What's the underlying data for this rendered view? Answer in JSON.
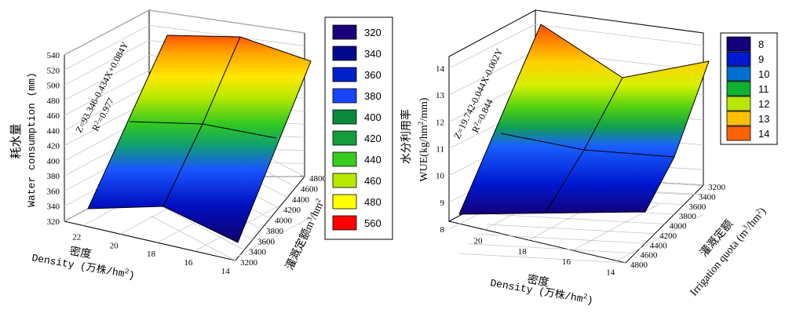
{
  "chart_data": [
    {
      "type": "surface",
      "title": "",
      "xlabel_cn": "密度",
      "xlabel_en": "Density (万株/hm",
      "xlabel_sup": "2",
      "xlabel_end": ")",
      "ylabel_cn": "灌溉定额",
      "ylabel_unit": "m",
      "ylabel_sup": "3",
      "ylabel_end": "/hm",
      "ylabel_sup2": "2",
      "zlabel_cn": "耗水量",
      "zlabel_en": "Water consumption (mm)",
      "equation": "Z=93.346-0.434X+0.084Y",
      "r2_label": "R",
      "r2_sup": "2",
      "r2_value": "=0.977",
      "x_ticks": [
        "22",
        "20",
        "18",
        "16",
        "14"
      ],
      "y_ticks": [
        "3200",
        "3400",
        "3600",
        "3800",
        "4000",
        "4200",
        "4400",
        "4600",
        "4800"
      ],
      "z_ticks": [
        "320",
        "340",
        "360",
        "380",
        "400",
        "420",
        "440",
        "460",
        "480",
        "500",
        "520",
        "540"
      ],
      "legend": [
        {
          "label": "320",
          "color": "#1a007a"
        },
        {
          "label": "340",
          "color": "#000a8c"
        },
        {
          "label": "360",
          "color": "#0020c8"
        },
        {
          "label": "380",
          "color": "#1844ff"
        },
        {
          "label": "400",
          "color": "#0c8a3c"
        },
        {
          "label": "420",
          "color": "#169c3a"
        },
        {
          "label": "440",
          "color": "#38cc20"
        },
        {
          "label": "460",
          "color": "#b8e800"
        },
        {
          "label": "480",
          "color": "#ffff00"
        },
        {
          "label": "560",
          "color": "#ff0000"
        }
      ]
    },
    {
      "type": "surface",
      "title": "",
      "xlabel_cn": "密度",
      "xlabel_en": "Density (万株/hm",
      "xlabel_sup": "2",
      "xlabel_end": ")",
      "ylabel_cn": "灌溉定额",
      "ylabel_en": "Irrigation quota (m",
      "ylabel_sup": "3",
      "ylabel_end": "/hm",
      "ylabel_sup2": "2",
      "ylabel_close": ")",
      "zlabel_cn": "水分利用率",
      "zlabel_en": "WUE(kg/hm",
      "zlabel_sup": "2",
      "zlabel_end": "/mm)",
      "equation": "Z=19.742-0.044X-0.002Y",
      "r2_label": "R",
      "r2_sup": "2",
      "r2_value": "=0.844",
      "x_ticks": [
        "20",
        "18",
        "16",
        "14"
      ],
      "y_ticks": [
        "3200",
        "3400",
        "3600",
        "3800",
        "4000",
        "4200",
        "4400",
        "4600",
        "4800"
      ],
      "z_ticks": [
        "8",
        "9",
        "10",
        "11",
        "12",
        "13",
        "14"
      ],
      "legend": [
        {
          "label": "8",
          "color": "#14007a"
        },
        {
          "label": "9",
          "color": "#0018d0"
        },
        {
          "label": "10",
          "color": "#0070d0"
        },
        {
          "label": "11",
          "color": "#10b030"
        },
        {
          "label": "12",
          "color": "#b8e800"
        },
        {
          "label": "13",
          "color": "#ffc000"
        },
        {
          "label": "14",
          "color": "#ff6000"
        }
      ]
    }
  ]
}
